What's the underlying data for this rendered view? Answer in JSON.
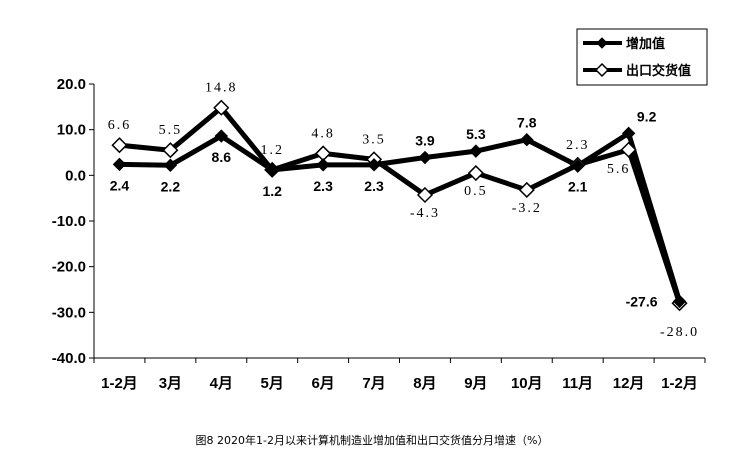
{
  "chart_data": {
    "type": "line",
    "title": "",
    "caption": "图8   2020年1-2月以来计算机制造业增加值和出口交货值分月增速（%）",
    "categories": [
      "1-2月",
      "3月",
      "4月",
      "5月",
      "6月",
      "7月",
      "8月",
      "9月",
      "10月",
      "11月",
      "12月",
      "1-2月"
    ],
    "ylim": [
      -40,
      20
    ],
    "yticks": [
      "20.0",
      "10.0",
      "0.0",
      "-10.0",
      "-20.0",
      "-30.0",
      "-40.0"
    ],
    "grid": false,
    "legend_position": "top-right",
    "series": [
      {
        "name": "增加值",
        "marker": "filled-diamond",
        "color": "#000000",
        "values": [
          2.4,
          2.2,
          8.6,
          1.2,
          2.3,
          2.3,
          3.9,
          5.3,
          7.8,
          2.1,
          9.2,
          -27.6
        ],
        "labels": [
          "2.4",
          "2.2",
          "8.6",
          "1.2",
          "2.3",
          "2.3",
          "3.9",
          "5.3",
          "7.8",
          "2.1",
          "9.2",
          "-27.6"
        ]
      },
      {
        "name": "出口交货值",
        "marker": "hollow-diamond",
        "color": "#000000",
        "values": [
          6.6,
          5.5,
          14.8,
          1.2,
          4.8,
          3.5,
          -4.3,
          0.5,
          -3.2,
          2.3,
          5.6,
          -28.0
        ],
        "labels": [
          "6.6",
          "5.5",
          "14.8",
          "1.2",
          "4.8",
          "3.5",
          "-4.3",
          "0.5",
          "-3.2",
          "2.3",
          "5.6",
          "-28.0"
        ]
      }
    ]
  }
}
